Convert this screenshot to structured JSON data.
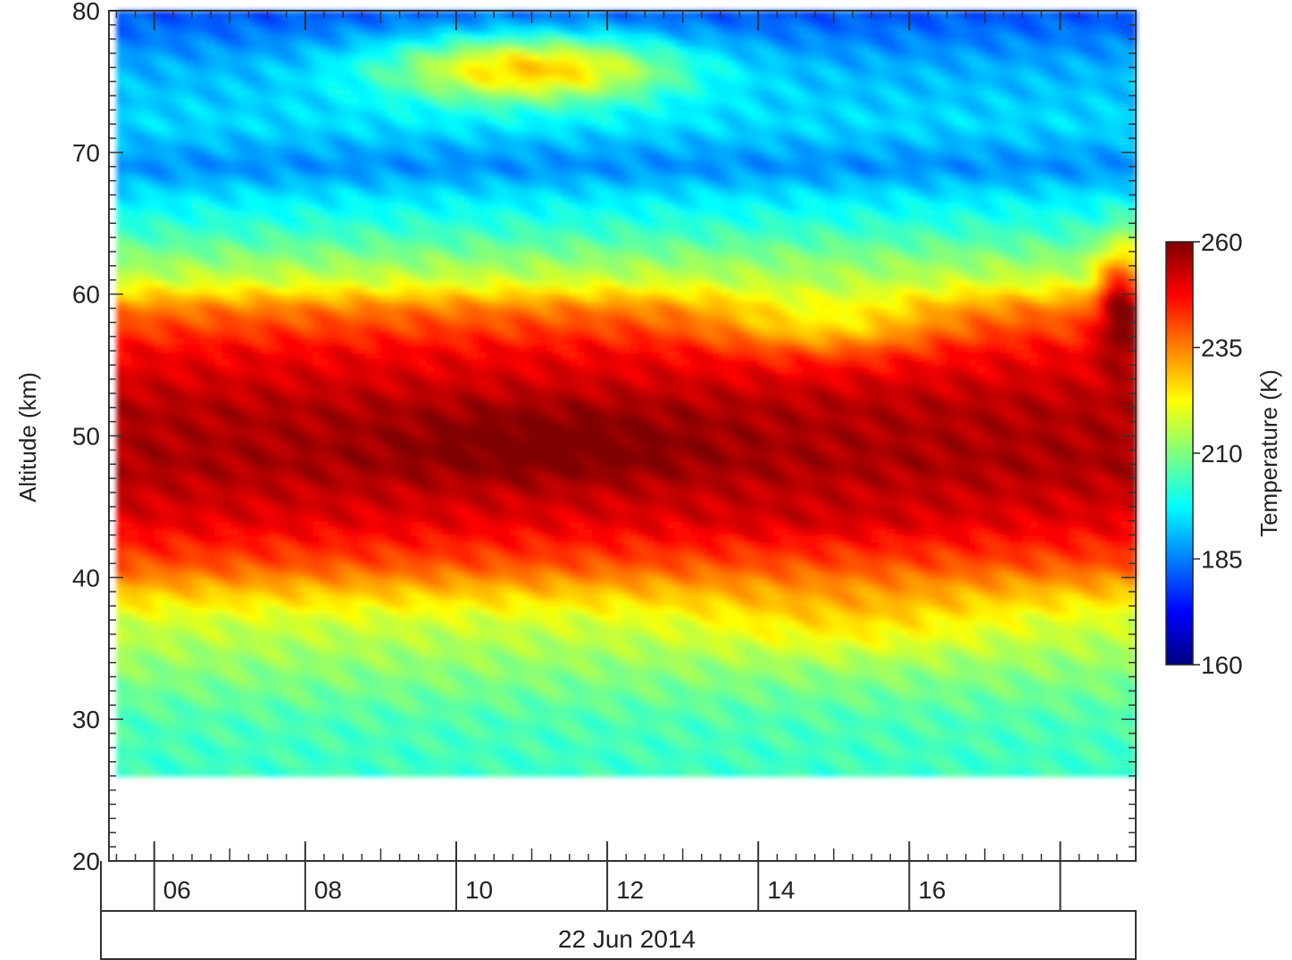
{
  "chart_data": {
    "type": "heatmap",
    "xlabel": "22 Jun 2014",
    "ylabel": "Altitude (km)",
    "ylim": [
      20,
      80
    ],
    "y_ticks": [
      20,
      30,
      40,
      50,
      60,
      70,
      80
    ],
    "x_range_hours": [
      5.4,
      19.0
    ],
    "x_ticks": [
      {
        "hour": 6,
        "label": "06"
      },
      {
        "hour": 8,
        "label": "08"
      },
      {
        "hour": 10,
        "label": "10"
      },
      {
        "hour": 12,
        "label": "12"
      },
      {
        "hour": 14,
        "label": "14"
      },
      {
        "hour": 16,
        "label": "16"
      },
      {
        "hour": 18,
        "label": ""
      }
    ],
    "data_coverage": {
      "time_hours": [
        5.5,
        19.0
      ],
      "altitude_km": [
        26,
        80
      ]
    },
    "colorbar": {
      "label": "Temperature (K)",
      "range": [
        160,
        260
      ],
      "ticks": [
        160,
        185,
        210,
        235,
        260
      ],
      "colormap": "jet"
    },
    "altitude_profile_K": [
      {
        "alt": 26,
        "t": 203
      },
      {
        "alt": 30,
        "t": 205
      },
      {
        "alt": 34,
        "t": 212
      },
      {
        "alt": 37,
        "t": 218
      },
      {
        "alt": 39,
        "t": 228
      },
      {
        "alt": 41,
        "t": 240
      },
      {
        "alt": 44,
        "t": 250
      },
      {
        "alt": 48,
        "t": 256
      },
      {
        "alt": 52,
        "t": 255
      },
      {
        "alt": 56,
        "t": 248
      },
      {
        "alt": 59,
        "t": 236
      },
      {
        "alt": 61,
        "t": 218
      },
      {
        "alt": 64,
        "t": 205
      },
      {
        "alt": 67,
        "t": 195
      },
      {
        "alt": 69,
        "t": 186
      },
      {
        "alt": 72,
        "t": 194
      },
      {
        "alt": 76,
        "t": 190
      },
      {
        "alt": 80,
        "t": 180
      }
    ],
    "features": [
      {
        "hour": 11.2,
        "alt": 49.5,
        "t": 262,
        "hour_extent": 2.0,
        "alt_extent": 2.5
      },
      {
        "hour": 15.2,
        "alt": 37.0,
        "t": 226,
        "hour_extent": 2.0,
        "alt_extent": 2.5
      },
      {
        "hour": 14.9,
        "alt": 58.0,
        "t": 224,
        "hour_extent": 1.5,
        "alt_extent": 2.5
      },
      {
        "hour": 11.0,
        "alt": 76.0,
        "t": 228,
        "hour_extent": 2.0,
        "alt_extent": 2.5
      },
      {
        "hour": 18.8,
        "alt": 60.0,
        "t": 255,
        "hour_extent": 0.3,
        "alt_extent": 4.0
      },
      {
        "hour": 14.8,
        "alt": 44.0,
        "t": 252,
        "hour_extent": 1.8,
        "alt_extent": 1.5
      }
    ]
  }
}
